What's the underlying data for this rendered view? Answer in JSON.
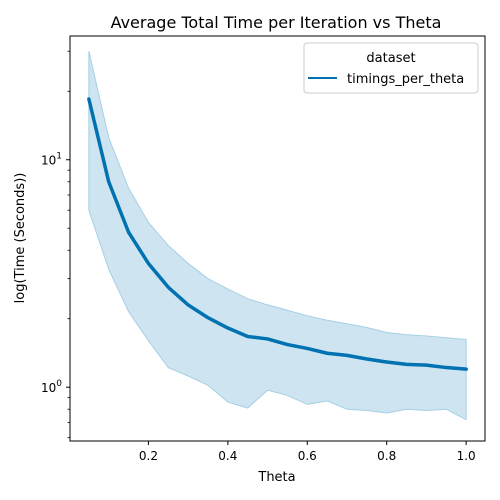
{
  "chart_data": {
    "type": "line",
    "title": "Average Total Time per Iteration vs Theta",
    "xlabel": "Theta",
    "ylabel": "log(Time (Seconds))",
    "yscale": "log",
    "xlim": [
      0.0025,
      1.0475
    ],
    "ylim": [
      0.58,
      35
    ],
    "x_ticks": [
      0.2,
      0.4,
      0.6,
      0.8,
      1.0
    ],
    "x_tick_labels": [
      "0.2",
      "0.4",
      "0.6",
      "0.8",
      "1.0"
    ],
    "y_major_ticks": [
      1,
      10
    ],
    "y_minor_ticks": [
      0.6,
      0.7,
      0.8,
      0.9,
      2,
      3,
      4,
      5,
      6,
      7,
      8,
      9,
      20,
      30
    ],
    "grid": false,
    "legend": {
      "title": "dataset",
      "position": "top-right"
    },
    "x": [
      0.05,
      0.1,
      0.15,
      0.2,
      0.25,
      0.3,
      0.35,
      0.4,
      0.45,
      0.5,
      0.55,
      0.6,
      0.65,
      0.7,
      0.75,
      0.8,
      0.85,
      0.9,
      0.95,
      1.0
    ],
    "series": [
      {
        "name": "timings_per_theta",
        "color": "#0072B2",
        "values": [
          18.5,
          8.0,
          4.8,
          3.5,
          2.75,
          2.3,
          2.02,
          1.82,
          1.67,
          1.63,
          1.54,
          1.48,
          1.41,
          1.38,
          1.33,
          1.29,
          1.26,
          1.25,
          1.22,
          1.2
        ],
        "band": {
          "color": "#a6cfe5",
          "upper": [
            30.0,
            12.5,
            7.5,
            5.3,
            4.2,
            3.5,
            3.0,
            2.7,
            2.45,
            2.3,
            2.18,
            2.06,
            1.97,
            1.9,
            1.83,
            1.74,
            1.7,
            1.68,
            1.65,
            1.62
          ],
          "lower": [
            6.0,
            3.3,
            2.15,
            1.6,
            1.22,
            1.12,
            1.02,
            0.86,
            0.81,
            0.97,
            0.92,
            0.84,
            0.87,
            0.8,
            0.79,
            0.77,
            0.8,
            0.79,
            0.8,
            0.72
          ]
        }
      }
    ]
  }
}
